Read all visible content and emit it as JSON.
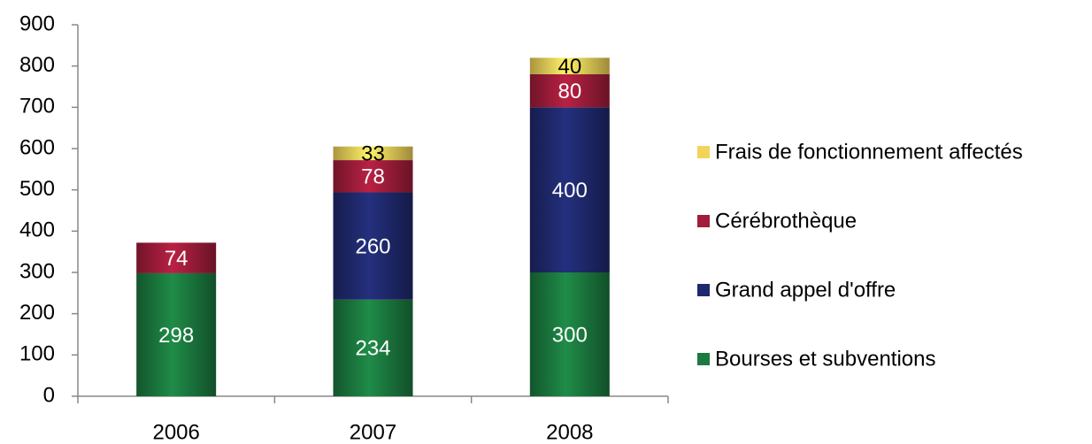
{
  "chart_data": {
    "type": "stacked_bar",
    "categories": [
      "2006",
      "2007",
      "2008"
    ],
    "series": [
      {
        "name": "Bourses et subventions",
        "color": "#1b7a3f",
        "values": [
          298,
          234,
          300
        ]
      },
      {
        "name": "Grand appel d'offre",
        "color": "#1f2a6e",
        "values": [
          null,
          260,
          400
        ]
      },
      {
        "name": "Cérébrothèque",
        "color": "#a11d3b",
        "values": [
          74,
          78,
          80
        ]
      },
      {
        "name": "Frais de fonctionnement affectés",
        "color": "#f4d35a",
        "values": [
          null,
          33,
          40
        ]
      }
    ],
    "ylim": [
      0,
      900
    ],
    "yticks": [
      0,
      100,
      200,
      300,
      400,
      500,
      600,
      700,
      800,
      900
    ],
    "grid": false,
    "legend": "right"
  }
}
